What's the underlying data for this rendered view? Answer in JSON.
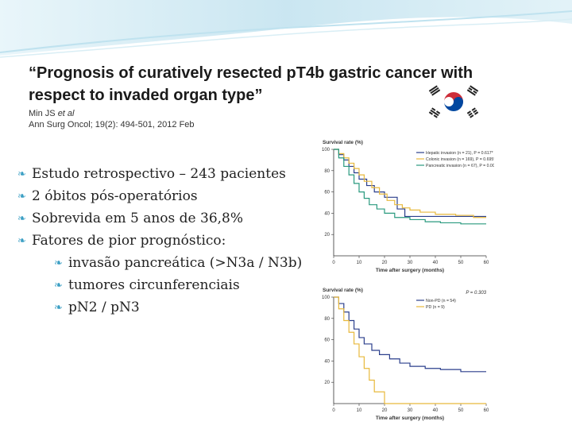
{
  "slide": {
    "title_line1": "“Prognosis of curatively resected pT4b gastric cancer with",
    "title_line2": "respect to invaded organ type”",
    "citation_author": "Min JS ",
    "citation_etal": "et al",
    "citation_journal": "Ann Surg Oncol; 19(2): 494-501, 2012 Feb",
    "bullets": [
      "Estudo retrospectivo – 243 pacientes",
      "2 óbitos pós-operatórios",
      "Sobrevida em 5 anos de 36,8%",
      "Fatores de pior prognóstico:"
    ],
    "sub_bullets": [
      "invasão pancreática (>N3a / N3b)",
      "tumores circunferenciais",
      "pN2 / pN3"
    ],
    "flag_icon": "south-korea-flag"
  },
  "colors": {
    "accent": "#3b9fc4",
    "hepatic": "#2b3f8c",
    "colonic": "#e8b93c",
    "pancreatic": "#2a9a7f"
  },
  "chart_data": [
    {
      "type": "line",
      "title": "",
      "ylabel": "Survival rate (%)",
      "xlabel": "Time after surgery (months)",
      "xlim": [
        0,
        60
      ],
      "ylim": [
        0,
        100
      ],
      "xticks": [
        0,
        10,
        20,
        30,
        40,
        50,
        60
      ],
      "yticks": [
        20,
        40,
        60,
        80,
        100
      ],
      "legend": [
        "Hepatic invasion (n = 21), P = 0.617*",
        "Colonic invasion (n = 169), P = 0.695**",
        "Pancreatic invasion (n = 67), P = 0.002†"
      ],
      "series": [
        {
          "name": "Hepatic invasion (n = 21), P = 0.617*",
          "color": "#2b3f8c",
          "x": [
            0,
            2,
            4,
            6,
            8,
            10,
            13,
            16,
            20,
            25,
            28,
            60
          ],
          "y": [
            100,
            95,
            90,
            84,
            78,
            72,
            66,
            60,
            55,
            44,
            37,
            37
          ]
        },
        {
          "name": "Colonic invasion (n = 169), P = 0.695**",
          "color": "#e8b93c",
          "x": [
            0,
            2,
            4,
            6,
            8,
            10,
            12,
            15,
            18,
            21,
            24,
            27,
            30,
            34,
            40,
            48,
            55,
            60
          ],
          "y": [
            100,
            96,
            92,
            87,
            82,
            76,
            70,
            64,
            58,
            52,
            48,
            45,
            43,
            41,
            39,
            38,
            36,
            36
          ]
        },
        {
          "name": "Pancreatic invasion (n = 67), P = 0.002†",
          "color": "#2a9a7f",
          "x": [
            0,
            2,
            4,
            6,
            8,
            10,
            12,
            14,
            17,
            20,
            24,
            30,
            36,
            42,
            50,
            60
          ],
          "y": [
            100,
            92,
            84,
            76,
            68,
            60,
            54,
            48,
            44,
            40,
            36,
            34,
            32,
            31,
            30,
            30
          ]
        }
      ]
    },
    {
      "type": "line",
      "title": "",
      "ylabel": "Survival rate (%)",
      "xlabel": "Time after surgery (months)",
      "annotation": "P = 0.303",
      "xlim": [
        0,
        60
      ],
      "ylim": [
        0,
        100
      ],
      "xticks": [
        0,
        10,
        20,
        30,
        40,
        50,
        60
      ],
      "yticks": [
        20,
        40,
        60,
        80,
        100
      ],
      "legend": [
        "Non-PD (n = 54)",
        "PD (n = 9)"
      ],
      "series": [
        {
          "name": "Non-PD (n = 54)",
          "color": "#2b3f8c",
          "x": [
            0,
            2,
            4,
            6,
            8,
            10,
            12,
            15,
            18,
            22,
            26,
            30,
            36,
            42,
            50,
            60
          ],
          "y": [
            100,
            94,
            86,
            78,
            70,
            62,
            56,
            50,
            46,
            42,
            38,
            35,
            33,
            32,
            30,
            30
          ]
        },
        {
          "name": "PD (n = 9)",
          "color": "#e8b93c",
          "x": [
            0,
            2,
            4,
            6,
            8,
            10,
            12,
            14,
            16,
            18,
            20,
            22,
            24,
            60
          ],
          "y": [
            100,
            89,
            78,
            67,
            56,
            44,
            33,
            22,
            11,
            11,
            0,
            0,
            0,
            0
          ]
        }
      ]
    }
  ]
}
